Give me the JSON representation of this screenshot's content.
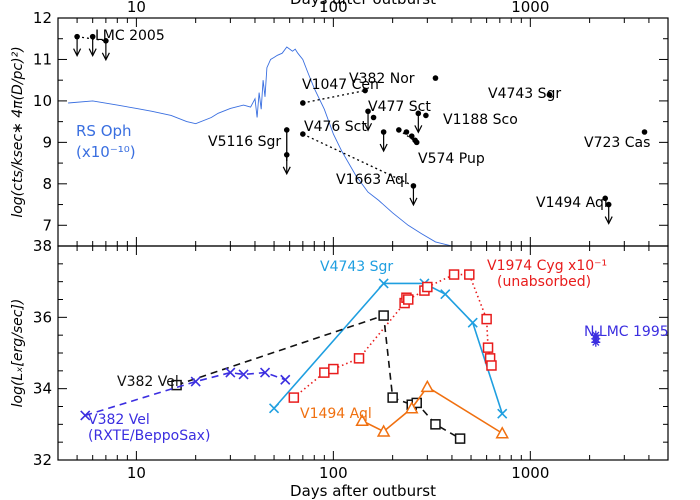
{
  "chart_data": [
    {
      "type": "scatter",
      "title": "",
      "xlabel_top": "Days after outburst",
      "ylabel": "log(cts/ksec∗ 4π(D/pc)²)",
      "x_scale": "log",
      "xlim": [
        4,
        5000
      ],
      "ylim": [
        6.5,
        12
      ],
      "x_ticks": [
        10,
        100,
        1000
      ],
      "x_tick_labels": [
        "10",
        "100",
        "1000"
      ],
      "y_ticks": [
        7,
        8,
        9,
        10,
        11,
        12
      ],
      "y_tick_labels": [
        "7",
        "8",
        "9",
        "10",
        "11",
        "12"
      ],
      "grid": false,
      "rs_oph": {
        "label_line1": "RS Oph",
        "label_line2": "(x10⁻¹⁰)",
        "color": "#3a6fe0",
        "curve": [
          [
            4.5,
            9.95
          ],
          [
            6,
            10.0
          ],
          [
            8,
            9.9
          ],
          [
            10,
            9.82
          ],
          [
            12,
            9.75
          ],
          [
            15,
            9.65
          ],
          [
            18,
            9.5
          ],
          [
            20,
            9.45
          ],
          [
            24,
            9.6
          ],
          [
            26,
            9.7
          ],
          [
            30,
            9.82
          ],
          [
            35,
            9.9
          ],
          [
            38,
            9.85
          ],
          [
            40,
            10.05
          ],
          [
            41,
            9.6
          ],
          [
            42,
            10.2
          ],
          [
            43,
            9.8
          ],
          [
            44,
            10.5
          ],
          [
            45,
            10.1
          ],
          [
            46,
            10.8
          ],
          [
            48,
            11.0
          ],
          [
            50,
            11.05
          ],
          [
            52,
            11.1
          ],
          [
            55,
            11.15
          ],
          [
            58,
            11.3
          ],
          [
            60,
            11.25
          ],
          [
            62,
            11.2
          ],
          [
            64,
            11.25
          ],
          [
            66,
            11.15
          ],
          [
            70,
            11.0
          ],
          [
            74,
            10.7
          ],
          [
            80,
            10.3
          ],
          [
            90,
            9.8
          ],
          [
            100,
            9.2
          ],
          [
            110,
            8.8
          ],
          [
            130,
            8.2
          ],
          [
            150,
            7.8
          ],
          [
            170,
            7.6
          ],
          [
            200,
            7.3
          ],
          [
            240,
            7.0
          ],
          [
            280,
            6.8
          ],
          [
            330,
            6.6
          ],
          [
            400,
            6.5
          ]
        ]
      },
      "novae": [
        {
          "label": "LMC 2005",
          "points": [
            {
              "x": 5,
              "y": 11.55,
              "limit": true
            },
            {
              "x": 6,
              "y": 11.55,
              "limit": true
            },
            {
              "x": 7,
              "y": 11.45,
              "limit": true
            }
          ]
        },
        {
          "label": "V1047 Cen",
          "points": [
            {
              "x": 70,
              "y": 9.95
            },
            {
              "x": 145,
              "y": 10.25
            }
          ]
        },
        {
          "label": "V382 Nor",
          "points": [
            {
              "x": 330,
              "y": 10.55
            }
          ]
        },
        {
          "label": "V4743 Sgr",
          "points": [
            {
              "x": 1250,
              "y": 10.15
            }
          ]
        },
        {
          "label": "V477 Sct",
          "points": [
            {
              "x": 150,
              "y": 9.75
            },
            {
              "x": 160,
              "y": 9.6
            }
          ]
        },
        {
          "label": "V476 Sct",
          "points": [
            {
              "x": 180,
              "y": 9.25,
              "limit": true
            }
          ]
        },
        {
          "label": "V1188 Sco",
          "points": [
            {
              "x": 270,
              "y": 9.7
            },
            {
              "x": 295,
              "y": 9.65
            }
          ]
        },
        {
          "label": "V5116 Sgr",
          "points": [
            {
              "x": 58,
              "y": 9.3
            },
            {
              "x": 58,
              "y": 8.7,
              "limit": true
            },
            {
              "x": 70,
              "y": 9.2
            }
          ]
        },
        {
          "label": "V574 Pup",
          "points": [
            {
              "x": 215,
              "y": 9.3
            },
            {
              "x": 235,
              "y": 9.25
            },
            {
              "x": 250,
              "y": 9.15
            },
            {
              "x": 260,
              "y": 9.05
            },
            {
              "x": 265,
              "y": 9.0
            }
          ]
        },
        {
          "label": "V723 Cas",
          "points": [
            {
              "x": 3800,
              "y": 9.25
            }
          ]
        },
        {
          "label": "V1663 Aql",
          "points": [
            {
              "x": 255,
              "y": 7.95,
              "limit": true
            }
          ]
        },
        {
          "label": "V1494 Aql",
          "points": [
            {
              "x": 2400,
              "y": 7.65
            },
            {
              "x": 2500,
              "y": 7.5
            }
          ]
        }
      ],
      "annotations": [
        "V5116 Sgr",
        "V476 Sct",
        "V1663 Aql"
      ]
    },
    {
      "type": "line",
      "title": "",
      "xlabel": "Days after outburst",
      "ylabel": "log(Lₓ[erg/sec])",
      "x_scale": "log",
      "xlim": [
        4,
        5000
      ],
      "ylim": [
        32,
        38
      ],
      "x_ticks": [
        10,
        100,
        1000
      ],
      "x_tick_labels": [
        "10",
        "100",
        "1000"
      ],
      "y_ticks": [
        32,
        34,
        36,
        38
      ],
      "y_tick_labels": [
        "32",
        "34",
        "36",
        "38"
      ],
      "grid": false,
      "series": [
        {
          "name": "V4743 Sgr",
          "color": "#1f9fe0",
          "marker": "x",
          "line": "solid",
          "x": [
            50,
            180,
            290,
            370,
            510,
            720
          ],
          "y": [
            33.45,
            36.95,
            36.95,
            36.65,
            35.85,
            33.3
          ]
        },
        {
          "name": "V1974 Cyg x10⁻¹",
          "name_line2": "(unabsorbed)",
          "color": "#e81c1c",
          "marker": "square",
          "line": "dotted",
          "x": [
            63,
            90,
            100,
            135,
            230,
            235,
            240,
            290,
            300,
            410,
            490,
            600,
            610,
            625,
            635
          ],
          "y": [
            33.75,
            34.45,
            34.55,
            34.85,
            36.4,
            36.55,
            36.5,
            36.75,
            36.85,
            37.2,
            37.2,
            35.95,
            35.15,
            34.85,
            34.65
          ]
        },
        {
          "name": "V382 Vel",
          "color": "#111111",
          "marker": "square",
          "line": "dashed",
          "x": [
            16,
            180,
            200,
            250,
            265,
            330,
            440
          ],
          "y": [
            34.1,
            36.05,
            33.75,
            33.55,
            33.6,
            33.0,
            32.6
          ]
        },
        {
          "name": "V382 Vel",
          "name_line2": "(RXTE/BeppoSax)",
          "color": "#3b2ee0",
          "marker": "x",
          "line": "dashed",
          "x": [
            5.5,
            20,
            30,
            35,
            45,
            57
          ],
          "y": [
            33.25,
            34.2,
            34.45,
            34.4,
            34.45,
            34.25
          ]
        },
        {
          "name": "V1494 Aql",
          "color": "#f07010",
          "marker": "triangle",
          "line": "solid",
          "x": [
            140,
            180,
            250,
            300,
            720
          ],
          "y": [
            33.1,
            32.8,
            33.45,
            34.05,
            32.75
          ]
        },
        {
          "name": "N LMC 1995",
          "color": "#3b2ee0",
          "marker": "star",
          "line": "none",
          "x": [
            2150,
            2150,
            2150
          ],
          "y": [
            35.3,
            35.4,
            35.5
          ]
        }
      ]
    }
  ]
}
